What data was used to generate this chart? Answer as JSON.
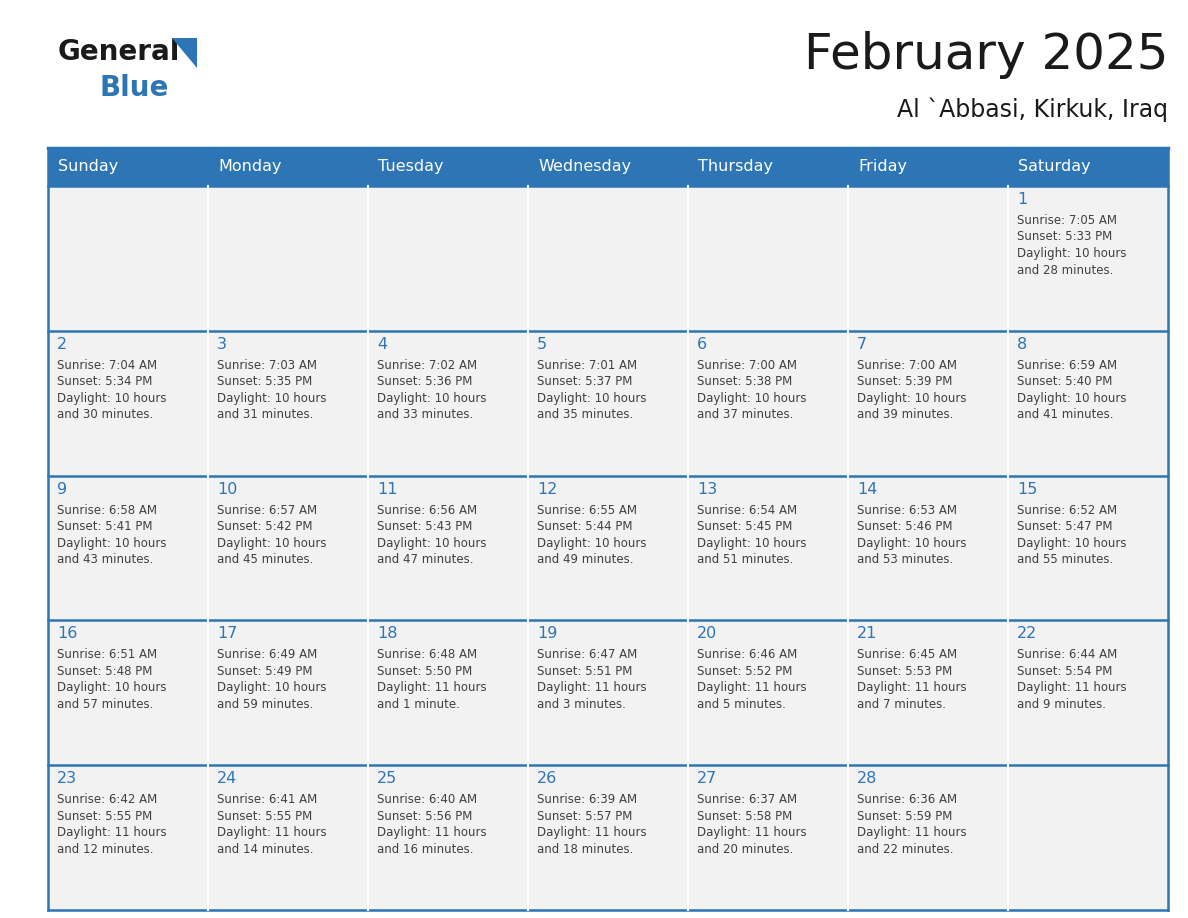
{
  "title": "February 2025",
  "subtitle": "Al `Abbasi, Kirkuk, Iraq",
  "header_bg": "#2E75B6",
  "header_text_color": "#FFFFFF",
  "cell_bg_even": "#F2F2F2",
  "cell_bg_white": "#FFFFFF",
  "cell_border_color": "#2E75B6",
  "day_number_color": "#2E75B6",
  "info_text_color": "#404040",
  "days_of_week": [
    "Sunday",
    "Monday",
    "Tuesday",
    "Wednesday",
    "Thursday",
    "Friday",
    "Saturday"
  ],
  "calendar_data": [
    [
      null,
      null,
      null,
      null,
      null,
      null,
      1
    ],
    [
      2,
      3,
      4,
      5,
      6,
      7,
      8
    ],
    [
      9,
      10,
      11,
      12,
      13,
      14,
      15
    ],
    [
      16,
      17,
      18,
      19,
      20,
      21,
      22
    ],
    [
      23,
      24,
      25,
      26,
      27,
      28,
      null
    ]
  ],
  "sunrise_data": {
    "1": "7:05 AM",
    "2": "7:04 AM",
    "3": "7:03 AM",
    "4": "7:02 AM",
    "5": "7:01 AM",
    "6": "7:00 AM",
    "7": "7:00 AM",
    "8": "6:59 AM",
    "9": "6:58 AM",
    "10": "6:57 AM",
    "11": "6:56 AM",
    "12": "6:55 AM",
    "13": "6:54 AM",
    "14": "6:53 AM",
    "15": "6:52 AM",
    "16": "6:51 AM",
    "17": "6:49 AM",
    "18": "6:48 AM",
    "19": "6:47 AM",
    "20": "6:46 AM",
    "21": "6:45 AM",
    "22": "6:44 AM",
    "23": "6:42 AM",
    "24": "6:41 AM",
    "25": "6:40 AM",
    "26": "6:39 AM",
    "27": "6:37 AM",
    "28": "6:36 AM"
  },
  "sunset_data": {
    "1": "5:33 PM",
    "2": "5:34 PM",
    "3": "5:35 PM",
    "4": "5:36 PM",
    "5": "5:37 PM",
    "6": "5:38 PM",
    "7": "5:39 PM",
    "8": "5:40 PM",
    "9": "5:41 PM",
    "10": "5:42 PM",
    "11": "5:43 PM",
    "12": "5:44 PM",
    "13": "5:45 PM",
    "14": "5:46 PM",
    "15": "5:47 PM",
    "16": "5:48 PM",
    "17": "5:49 PM",
    "18": "5:50 PM",
    "19": "5:51 PM",
    "20": "5:52 PM",
    "21": "5:53 PM",
    "22": "5:54 PM",
    "23": "5:55 PM",
    "24": "5:55 PM",
    "25": "5:56 PM",
    "26": "5:57 PM",
    "27": "5:58 PM",
    "28": "5:59 PM"
  },
  "daylight_data": {
    "1": [
      "Daylight: 10 hours",
      "and 28 minutes."
    ],
    "2": [
      "Daylight: 10 hours",
      "and 30 minutes."
    ],
    "3": [
      "Daylight: 10 hours",
      "and 31 minutes."
    ],
    "4": [
      "Daylight: 10 hours",
      "and 33 minutes."
    ],
    "5": [
      "Daylight: 10 hours",
      "and 35 minutes."
    ],
    "6": [
      "Daylight: 10 hours",
      "and 37 minutes."
    ],
    "7": [
      "Daylight: 10 hours",
      "and 39 minutes."
    ],
    "8": [
      "Daylight: 10 hours",
      "and 41 minutes."
    ],
    "9": [
      "Daylight: 10 hours",
      "and 43 minutes."
    ],
    "10": [
      "Daylight: 10 hours",
      "and 45 minutes."
    ],
    "11": [
      "Daylight: 10 hours",
      "and 47 minutes."
    ],
    "12": [
      "Daylight: 10 hours",
      "and 49 minutes."
    ],
    "13": [
      "Daylight: 10 hours",
      "and 51 minutes."
    ],
    "14": [
      "Daylight: 10 hours",
      "and 53 minutes."
    ],
    "15": [
      "Daylight: 10 hours",
      "and 55 minutes."
    ],
    "16": [
      "Daylight: 10 hours",
      "and 57 minutes."
    ],
    "17": [
      "Daylight: 10 hours",
      "and 59 minutes."
    ],
    "18": [
      "Daylight: 11 hours",
      "and 1 minute."
    ],
    "19": [
      "Daylight: 11 hours",
      "and 3 minutes."
    ],
    "20": [
      "Daylight: 11 hours",
      "and 5 minutes."
    ],
    "21": [
      "Daylight: 11 hours",
      "and 7 minutes."
    ],
    "22": [
      "Daylight: 11 hours",
      "and 9 minutes."
    ],
    "23": [
      "Daylight: 11 hours",
      "and 12 minutes."
    ],
    "24": [
      "Daylight: 11 hours",
      "and 14 minutes."
    ],
    "25": [
      "Daylight: 11 hours",
      "and 16 minutes."
    ],
    "26": [
      "Daylight: 11 hours",
      "and 18 minutes."
    ],
    "27": [
      "Daylight: 11 hours",
      "and 20 minutes."
    ],
    "28": [
      "Daylight: 11 hours",
      "and 22 minutes."
    ]
  }
}
